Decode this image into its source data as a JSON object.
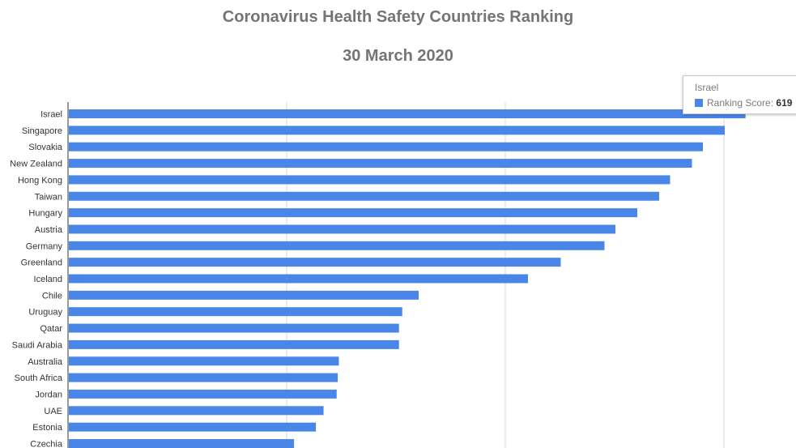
{
  "title": "Coronavirus Health Safety Countries Ranking",
  "subtitle": "30 March 2020",
  "tooltip": {
    "country": "Israel",
    "series_label": "Ranking Score:",
    "value": "619"
  },
  "colors": {
    "bar": "#4a86e8",
    "grid": "#d9d9d9",
    "axis": "#333333",
    "label": "#333333"
  },
  "chart_data": {
    "type": "bar",
    "orientation": "horizontal",
    "title": "Coronavirus Health Safety Countries Ranking",
    "subtitle": "30 March 2020",
    "xlim": [
      0,
      600
    ],
    "grid": true,
    "series": [
      {
        "name": "Ranking Score"
      }
    ],
    "categories": [
      "Israel",
      "Singapore",
      "Slovakia",
      "New Zealand",
      "Hong Kong",
      "Taiwan",
      "Hungary",
      "Austria",
      "Germany",
      "Greenland",
      "Iceland",
      "Chile",
      "Uruguay",
      "Qatar",
      "Saudi Arabia",
      "Australia",
      "South Africa",
      "Jordan",
      "UAE",
      "Estonia",
      "Czechia"
    ],
    "values": [
      619,
      600,
      580,
      570,
      550,
      540,
      520,
      500,
      490,
      450,
      420,
      320,
      305,
      302,
      302,
      247,
      246,
      245,
      233,
      226,
      206
    ]
  }
}
